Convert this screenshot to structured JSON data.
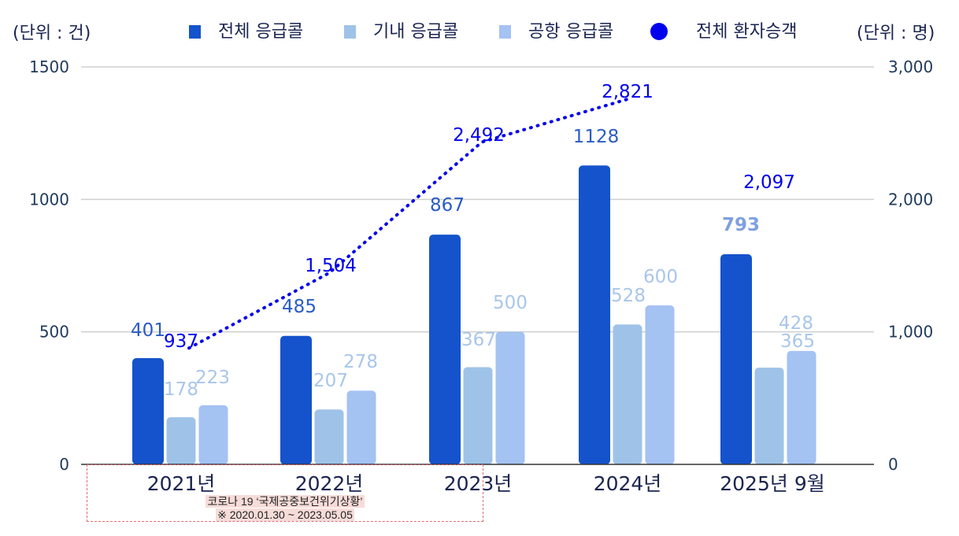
{
  "units": {
    "left": "(단위 : 건)",
    "right": "(단위 : 명)"
  },
  "legend": [
    {
      "label": "전체 응급콜",
      "color": "#1553cc",
      "shape": "square"
    },
    {
      "label": "기내 응급콜",
      "color": "#9fc3e8",
      "shape": "square"
    },
    {
      "label": "공항 응급콜",
      "color": "#a4c2f2",
      "shape": "square"
    },
    {
      "label": "전체 환자승객",
      "color": "#0000ee",
      "shape": "circle"
    }
  ],
  "note": {
    "line1": "코로나 19 ‘국제공중보건위기상황’",
    "line2": "※ 2020.01.30 ~ 2023.05.05"
  },
  "chart_data": {
    "type": "bar",
    "categories": [
      "2021년",
      "2022년",
      "2023년",
      "2024년",
      "2025년 9월"
    ],
    "series": [
      {
        "name": "전체 응급콜",
        "axis": "left",
        "type": "bar",
        "color": "#1553cc",
        "values": [
          401,
          485,
          867,
          1128,
          793
        ],
        "labels": [
          "401",
          "485",
          "867",
          "1128",
          "793"
        ]
      },
      {
        "name": "기내 응급콜",
        "axis": "left",
        "type": "bar",
        "color": "#9fc3e8",
        "values": [
          178,
          207,
          367,
          528,
          365
        ],
        "labels": [
          "178",
          "207",
          "367",
          "528",
          "365"
        ]
      },
      {
        "name": "공항 응급콜",
        "axis": "left",
        "type": "bar",
        "color": "#a4c2f2",
        "values": [
          223,
          278,
          500,
          600,
          428
        ],
        "labels": [
          "223",
          "278",
          "500",
          "600",
          "428"
        ]
      },
      {
        "name": "전체 환자승객",
        "axis": "right",
        "type": "line",
        "style": "dotted",
        "color": "#0000ee",
        "values": [
          937,
          1504,
          2492,
          2821,
          2097
        ],
        "labels": [
          "937",
          "1,504",
          "2,492",
          "2,821",
          "2,097"
        ]
      }
    ],
    "left_axis": {
      "label": "(단위 : 건)",
      "range": [
        0,
        1500
      ],
      "ticks": [
        0,
        500,
        1000,
        1500
      ],
      "tick_labels": [
        "0",
        "500",
        "1000",
        "1500"
      ]
    },
    "right_axis": {
      "label": "(단위 : 명)",
      "range": [
        0,
        3000
      ],
      "ticks": [
        0,
        1000,
        2000,
        3000
      ],
      "tick_labels": [
        "0",
        "1,000",
        "2,000",
        "3,000"
      ]
    },
    "line_connects": [
      "2021년",
      "2022년",
      "2023년",
      "2024년"
    ],
    "grid": true,
    "legend_position": "top"
  }
}
